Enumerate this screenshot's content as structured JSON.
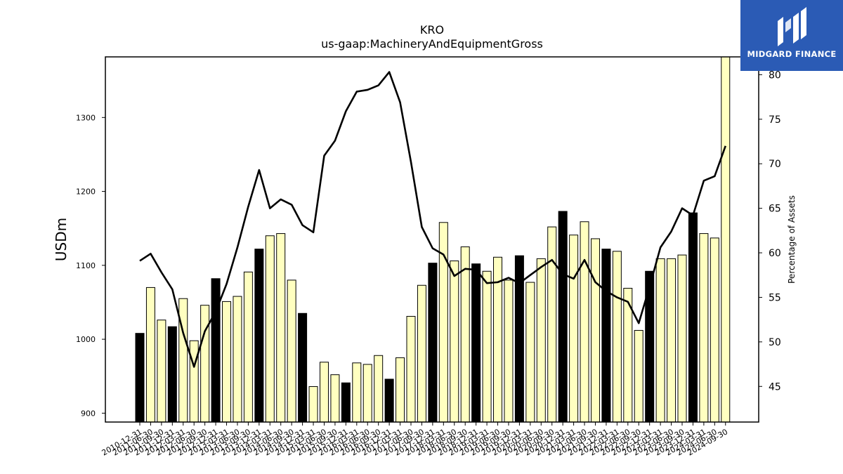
{
  "chart_data": {
    "type": "bar",
    "title": "KRO",
    "subtitle": "us-gaap:MachineryAndEquipmentGross",
    "ylabel": "USDm",
    "ylabel_right": "Percentage of Assets",
    "ylim": [
      888,
      1382
    ],
    "ylim_right": [
      41,
      82
    ],
    "yticks": [
      900,
      1000,
      1100,
      1200,
      1300
    ],
    "yticks_right": [
      45,
      50,
      55,
      60,
      65,
      70,
      75,
      80
    ],
    "grid": false,
    "bar_colors": {
      "annual": "#000000",
      "quarter": "#ffffc0"
    },
    "categories": [
      "2010-12-31",
      "2011-06-30",
      "2011-09-30",
      "2011-12-31",
      "2012-03-31",
      "2012-06-30",
      "2012-09-30",
      "2012-12-31",
      "2013-03-31",
      "2013-06-30",
      "2013-09-30",
      "2013-12-31",
      "2014-03-31",
      "2014-06-30",
      "2014-09-30",
      "2014-12-31",
      "2015-03-31",
      "2015-06-30",
      "2015-09-30",
      "2015-12-31",
      "2016-03-31",
      "2016-06-30",
      "2016-09-30",
      "2016-12-31",
      "2017-03-31",
      "2017-06-30",
      "2017-09-30",
      "2017-12-31",
      "2018-03-31",
      "2018-06-30",
      "2018-09-30",
      "2018-12-31",
      "2019-03-31",
      "2019-06-30",
      "2019-09-30",
      "2019-12-31",
      "2020-03-31",
      "2020-06-30",
      "2020-09-30",
      "2020-12-31",
      "2021-03-31",
      "2021-06-30",
      "2021-09-30",
      "2021-12-31",
      "2022-03-31",
      "2022-06-30",
      "2022-09-30",
      "2022-12-31",
      "2023-03-31",
      "2023-06-30",
      "2023-09-30",
      "2023-12-31",
      "2024-03-31",
      "2024-06-30",
      "2024-09-30"
    ],
    "series": [
      {
        "type": "bar",
        "values": [
          1008,
          1070,
          1026,
          1017,
          1055,
          998,
          1046,
          1082,
          1051,
          1058,
          1091,
          1122,
          1140,
          1143,
          1080,
          1035,
          936,
          969,
          952,
          941,
          968,
          966,
          978,
          946,
          975,
          1031,
          1073,
          1103,
          1158,
          1106,
          1125,
          1102,
          1092,
          1111,
          1080,
          1113,
          1077,
          1109,
          1152,
          1173,
          1141,
          1159,
          1136,
          1122,
          1119,
          1069,
          1012,
          1092,
          1109,
          1109,
          1114,
          1171,
          1143,
          1137,
          1382
        ],
        "annual": [
          true,
          false,
          false,
          true,
          false,
          false,
          false,
          true,
          false,
          false,
          false,
          true,
          false,
          false,
          false,
          true,
          false,
          false,
          false,
          true,
          false,
          false,
          false,
          true,
          false,
          false,
          false,
          true,
          false,
          false,
          false,
          true,
          false,
          false,
          false,
          true,
          false,
          false,
          false,
          true,
          false,
          false,
          false,
          true,
          false,
          false,
          false,
          true,
          false,
          false,
          false,
          true,
          false,
          false,
          false
        ]
      },
      {
        "type": "line",
        "axis": "right",
        "color": "#000000",
        "values": [
          59.1,
          59.9,
          57.8,
          55.9,
          51.0,
          47.2,
          51.2,
          53.4,
          56.5,
          60.6,
          65.2,
          69.3,
          65.0,
          66.0,
          65.4,
          63.1,
          62.3,
          70.9,
          72.6,
          75.9,
          78.1,
          78.3,
          78.8,
          80.3,
          76.9,
          70.2,
          62.9,
          60.5,
          59.8,
          57.4,
          58.2,
          58.1,
          56.6,
          56.7,
          57.2,
          56.6,
          57.5,
          58.4,
          59.2,
          57.6,
          57.1,
          59.2,
          56.7,
          55.7,
          55.0,
          54.5,
          52.1,
          56.2,
          60.6,
          62.4,
          65.0,
          64.2,
          68.1,
          68.6,
          72.0
        ]
      }
    ]
  },
  "logo": {
    "text": "MIDGARD FINANCE",
    "background": "#2b5bb5"
  }
}
